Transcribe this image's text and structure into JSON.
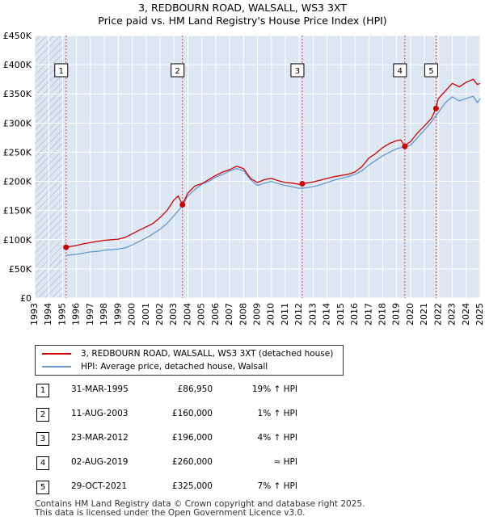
{
  "title": {
    "line1": "3, REDBOURN ROAD, WALSALL, WS3 3XT",
    "line2": "Price paid vs. HM Land Registry's House Price Index (HPI)"
  },
  "legend": {
    "property": "3, REDBOURN ROAD, WALSALL, WS3 3XT (detached house)",
    "hpi": "HPI: Average price, detached house, Walsall"
  },
  "transactions": [
    {
      "num": "1",
      "date": "31-MAR-1995",
      "price": "£86,950",
      "relation": "19% ↑ HPI"
    },
    {
      "num": "2",
      "date": "11-AUG-2003",
      "price": "£160,000",
      "relation": "1% ↑ HPI"
    },
    {
      "num": "3",
      "date": "23-MAR-2012",
      "price": "£196,000",
      "relation": "4% ↑ HPI"
    },
    {
      "num": "4",
      "date": "02-AUG-2019",
      "price": "£260,000",
      "relation": "≈ HPI"
    },
    {
      "num": "5",
      "date": "29-OCT-2021",
      "price": "£325,000",
      "relation": "7% ↑ HPI"
    }
  ],
  "footer": {
    "line1": "Contains HM Land Registry data © Crown copyright and database right 2025.",
    "line2": "This data is licensed under the Open Government Licence v3.0."
  },
  "colors": {
    "property": "#cc0000",
    "hpi": "#6699cc",
    "background_band": "#dde6f3",
    "grid": "#ffffff",
    "sale_line": "#dd4444",
    "hatch": "#aaaaaa"
  },
  "chart_data": {
    "type": "line",
    "xlim": [
      1993,
      2025
    ],
    "ylim": [
      0,
      450000
    ],
    "grid": true,
    "legend_position": "below",
    "x_ticks": [
      1993,
      1994,
      1995,
      1996,
      1997,
      1998,
      1999,
      2000,
      2001,
      2002,
      2003,
      2004,
      2005,
      2006,
      2007,
      2008,
      2009,
      2010,
      2011,
      2012,
      2013,
      2014,
      2015,
      2016,
      2017,
      2018,
      2019,
      2020,
      2021,
      2022,
      2023,
      2024,
      2025
    ],
    "y_ticks": [
      0,
      50000,
      100000,
      150000,
      200000,
      250000,
      300000,
      350000,
      400000,
      450000
    ],
    "y_tick_labels": [
      "£0",
      "£50K",
      "£100K",
      "£150K",
      "£200K",
      "£250K",
      "£300K",
      "£350K",
      "£400K",
      "£450K"
    ],
    "sales": [
      {
        "label": "1",
        "x": 1995.25,
        "y": 86950
      },
      {
        "label": "2",
        "x": 2003.61,
        "y": 160000
      },
      {
        "label": "3",
        "x": 2012.22,
        "y": 196000
      },
      {
        "label": "4",
        "x": 2019.59,
        "y": 260000
      },
      {
        "label": "5",
        "x": 2021.83,
        "y": 325000
      }
    ],
    "series": [
      {
        "name": "3, REDBOURN ROAD, WALSALL, WS3 3XT (detached house)",
        "x": [
          1995.25,
          1995.5,
          1996,
          1996.5,
          1997,
          1997.5,
          1998,
          1998.5,
          1999,
          1999.5,
          2000,
          2000.5,
          2001,
          2001.5,
          2002,
          2002.5,
          2003,
          2003.3,
          2003.61,
          2003.8,
          2004,
          2004.5,
          2005,
          2005.5,
          2006,
          2006.5,
          2007,
          2007.5,
          2008,
          2008.5,
          2009,
          2009.5,
          2010,
          2010.5,
          2011,
          2011.5,
          2012,
          2012.22,
          2012.5,
          2013,
          2013.5,
          2014,
          2014.5,
          2015,
          2015.5,
          2016,
          2016.5,
          2017,
          2017.5,
          2018,
          2018.5,
          2019,
          2019.3,
          2019.59,
          2019.8,
          2020,
          2020.5,
          2021,
          2021.5,
          2021.83,
          2022,
          2022.5,
          2023,
          2023.5,
          2024,
          2024.5,
          2024.8,
          2025
        ],
        "y": [
          86950,
          88000,
          90000,
          93000,
          95000,
          97000,
          99000,
          100000,
          101000,
          104000,
          110000,
          116000,
          122000,
          128000,
          138000,
          150000,
          168000,
          175000,
          160000,
          170000,
          180000,
          192000,
          196000,
          203000,
          210000,
          216000,
          220000,
          226000,
          222000,
          205000,
          198000,
          203000,
          205000,
          201000,
          198000,
          197000,
          195000,
          196000,
          197000,
          199000,
          202000,
          205000,
          208000,
          210000,
          212000,
          216000,
          225000,
          240000,
          248000,
          258000,
          265000,
          270000,
          271000,
          260000,
          265000,
          268000,
          283000,
          295000,
          308000,
          325000,
          342000,
          355000,
          368000,
          362000,
          370000,
          375000,
          366000,
          368000
        ]
      },
      {
        "name": "HPI: Average price, detached house, Walsall",
        "x": [
          1995.25,
          1995.5,
          1996,
          1996.5,
          1997,
          1997.5,
          1998,
          1998.5,
          1999,
          1999.5,
          2000,
          2000.5,
          2001,
          2001.5,
          2002,
          2002.5,
          2003,
          2003.5,
          2004,
          2004.5,
          2005,
          2005.5,
          2006,
          2006.5,
          2007,
          2007.5,
          2008,
          2008.5,
          2009,
          2009.5,
          2010,
          2010.5,
          2011,
          2011.5,
          2012,
          2012.5,
          2013,
          2013.5,
          2014,
          2014.5,
          2015,
          2015.5,
          2016,
          2016.5,
          2017,
          2017.5,
          2018,
          2018.5,
          2019,
          2019.5,
          2020,
          2020.5,
          2021,
          2021.5,
          2022,
          2022.5,
          2023,
          2023.5,
          2024,
          2024.5,
          2024.8,
          2025
        ],
        "y": [
          73000,
          74000,
          75000,
          77000,
          79000,
          80000,
          82000,
          83000,
          84000,
          86000,
          91000,
          97000,
          103000,
          110000,
          118000,
          128000,
          141000,
          155000,
          175000,
          186000,
          195000,
          200000,
          207000,
          212000,
          218000,
          222000,
          218000,
          203000,
          193000,
          197000,
          200000,
          196000,
          193000,
          191000,
          188000,
          189000,
          191000,
          194000,
          198000,
          202000,
          205000,
          208000,
          212000,
          218000,
          228000,
          236000,
          244000,
          250000,
          256000,
          259000,
          262000,
          275000,
          288000,
          302000,
          318000,
          335000,
          345000,
          338000,
          342000,
          346000,
          335000,
          342000
        ]
      }
    ]
  }
}
